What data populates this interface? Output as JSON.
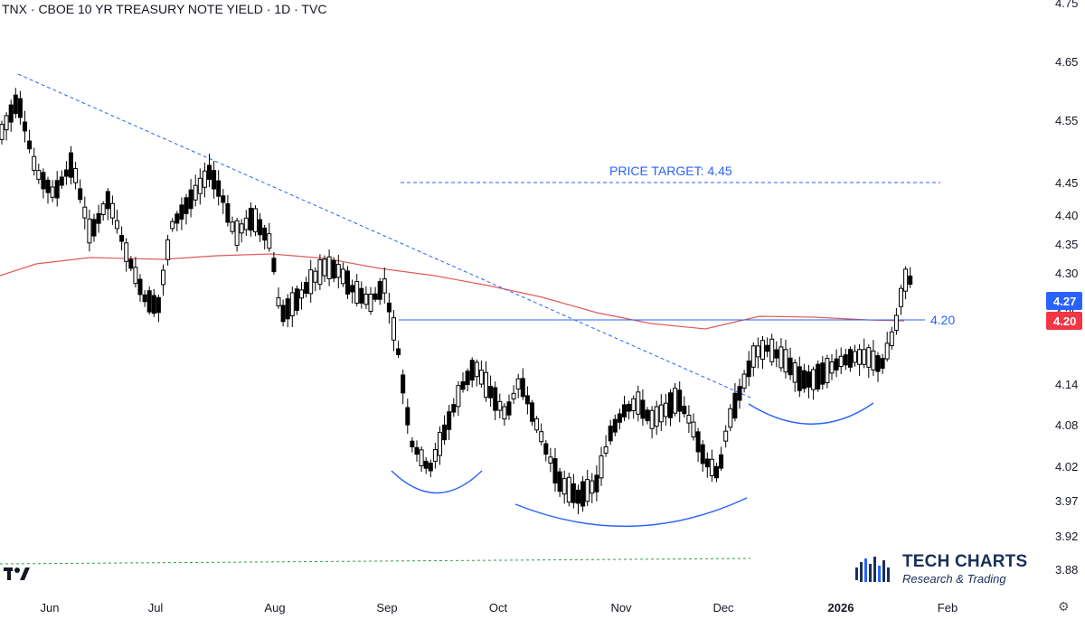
{
  "header": {
    "title": "TNX · CBOE 10 YR TREASURY NOTE YIELD · 1D · TVC"
  },
  "chart_data": {
    "type": "candlestick",
    "y_ticks": [
      "4.75",
      "4.65",
      "4.55",
      "4.45",
      "4.40",
      "4.35",
      "4.30",
      "4.25",
      "4.14",
      "4.08",
      "4.02",
      "3.97",
      "3.92",
      "3.88"
    ],
    "x_ticks": [
      {
        "label": "Jun",
        "bold": false
      },
      {
        "label": "Jul",
        "bold": false
      },
      {
        "label": "Aug",
        "bold": false
      },
      {
        "label": "Sep",
        "bold": false
      },
      {
        "label": "Oct",
        "bold": false
      },
      {
        "label": "Nov",
        "bold": false
      },
      {
        "label": "Dec",
        "bold": false
      },
      {
        "label": "2026",
        "bold": true
      },
      {
        "label": "Feb",
        "bold": false
      }
    ],
    "price_target_label": "PRICE TARGET: 4.45",
    "price_target": 4.45,
    "neckline_label": "4.20",
    "neckline": 4.2,
    "last_price_badge": "4.27",
    "neckline_badge": "4.20",
    "moving_average_color": "#e05a5a",
    "candle_color": "#000000",
    "annotation_color": "#2962ff",
    "badge_blue": "#2962ff",
    "badge_red": "#f23645"
  },
  "branding": {
    "name": "TECH CHARTS",
    "tagline": "Research & Trading"
  }
}
